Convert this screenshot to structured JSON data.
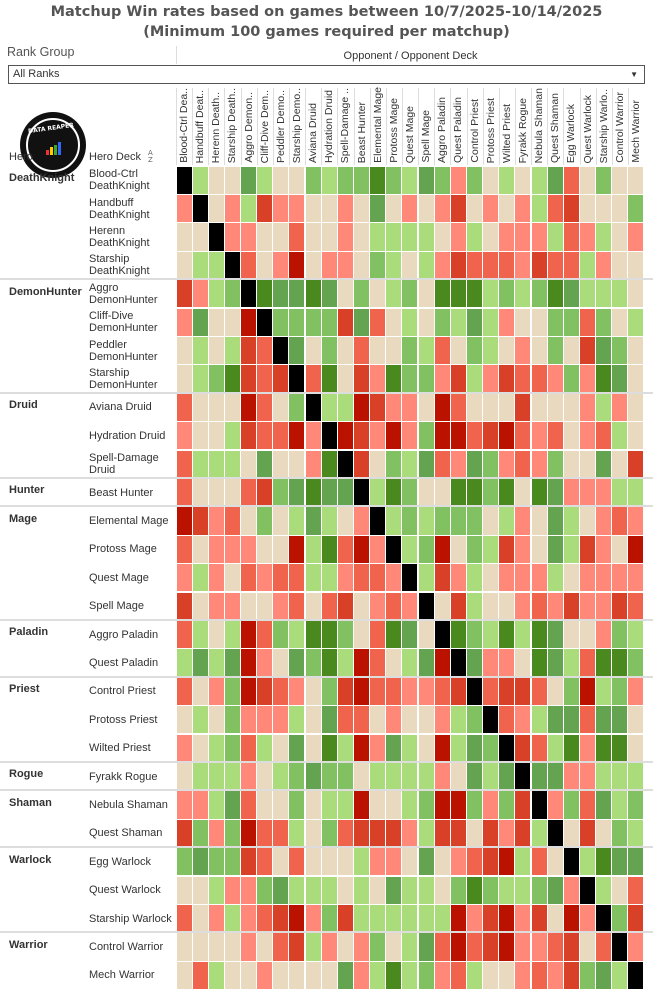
{
  "title_line1": "Matchup Win rates based on games between 10/7/2025-10/14/2025",
  "title_line2": "(Minimum 100 games required per matchup)",
  "rank_group": {
    "label": "Rank Group",
    "selected": "All Ranks"
  },
  "logo_text": "DATA REAPER REPORT",
  "header": {
    "hero": "Hero",
    "hero_deck": "Hero Deck",
    "opponent": "Opponent / Opponent Deck",
    "sort_icon": "A-Z"
  },
  "colors": {
    "X": "#000000",
    "R4": "#bb1200",
    "R3": "#d84028",
    "R2": "#f0644e",
    "R1": "#ff8878",
    "N": "#e8d9bf",
    "G1": "#aadc7c",
    "G2": "#82c162",
    "G3": "#64a450",
    "G4": "#4a891d"
  },
  "chart_data": {
    "type": "heatmap",
    "title": "Matchup Win rates based on games between 10/7/2025-10/14/2025",
    "value_scale": "categorical win-rate bins: R4 (strongly unfavored) .. N (even) .. G4 (strongly favored), X = mirror",
    "columns": [
      "Blood-Ctrl Dea..",
      "Handbuff Deat..",
      "Herenn Death..",
      "Starship Death..",
      "Aggro Demon..",
      "Cliff-Dive Dem..",
      "Peddler Demo..",
      "Starship Demo..",
      "Aviana Druid",
      "Hydration Druid",
      "Spell-Damage ..",
      "Beast Hunter",
      "Elemental Mage",
      "Protoss Mage",
      "Quest Mage",
      "Spell Mage",
      "Aggro Paladin",
      "Quest Paladin",
      "Control Priest",
      "Protoss Priest",
      "Wilted Priest",
      "Fyrakk Rogue",
      "Nebula Shaman",
      "Quest Shaman",
      "Egg Warlock",
      "Quest Warlock",
      "Starship Warlo..",
      "Control Warrior",
      "Mech Warrior"
    ],
    "groups": [
      {
        "hero": "DeathKnight",
        "rows": [
          {
            "deck": "Blood-Ctrl DeathKnight",
            "cells": "X G1 N N G3 G1 N N G2 G1 G2 G2 G4 G2 G1 G3 G2 R1 G2 N G1 N G1 G3 R2 N G2 N N"
          },
          {
            "deck": "Handbuff DeathKnight",
            "cells": "R1 X N R1 G1 R3 R1 R1 N N R1 N G3 N R1 N R1 R3 N R1 N R1 G1 R2 R3 N N N G2"
          },
          {
            "deck": "Herenn DeathKnight",
            "cells": "N N X R1 R1 N N R2 N N R1 N G1 G1 G1 G1 N R1 G1 N R1 R1 R1 G1 R2 R1 G1 N R1"
          },
          {
            "deck": "Starship DeathKnight",
            "cells": "N G1 G1 X R2 N R1 R4 N R1 R1 N G2 G1 N G1 R1 R3 R2 R2 R2 R1 R3 R2 R2 G1 R1 N N"
          }
        ]
      },
      {
        "hero": "DemonHunter",
        "rows": [
          {
            "deck": "Aggro DemonHunter",
            "cells": "R3 R1 G1 G2 X G4 G3 G3 G4 G3 N G2 N G1 G2 N G4 G4 G4 G1 G2 G1 G2 G4 G3 G1 G1 G1 N"
          },
          {
            "deck": "Cliff-Dive DemonHunter",
            "cells": "R1 G3 N N R4 X G2 G2 G2 G2 R3 G3 R2 N G1 N G2 G1 G3 G1 R1 N N G2 G2 R2 G2 N G1"
          },
          {
            "deck": "Peddler DemonHunter",
            "cells": "N G1 N G1 R3 R2 X G3 N G2 N R2 N N G2 G1 R2 N G2 G1 N R1 N G2 N R3 G3 G2 N"
          },
          {
            "deck": "Starship DemonHunter",
            "cells": "N G1 G2 G4 R3 R2 R3 X R2 G4 N R3 R1 G4 G2 G2 R1 R3 G1 R1 R3 R2 R2 R1 G2 R1 G4 G3 N"
          }
        ]
      },
      {
        "hero": "Druid",
        "rows": [
          {
            "deck": "Aviana Druid",
            "cells": "R2 N N N R4 R2 N G2 X G1 G1 R4 R3 R1 R1 N R4 R2 N N N R3 N N N R1 G1 R1 N"
          },
          {
            "deck": "Hydration Druid",
            "cells": "R1 N N G1 R3 R2 R2 R4 R1 X R4 R3 R1 R4 R1 G2 R4 R4 R2 R3 R4 R2 R1 R2 N R1 R2 G1 N"
          },
          {
            "deck": "Spell-Damage Druid",
            "cells": "R2 G1 G1 G1 N G3 N N R1 G4 X R3 N G2 G1 G3 R2 R1 G3 G2 R1 R2 R1 G2 N N G3 N R3"
          }
        ]
      },
      {
        "hero": "Hunter",
        "rows": [
          {
            "deck": "Beast Hunter",
            "cells": "R2 N N N R2 R3 G2 G3 G4 G3 G3 X G1 G4 G2 N N G4 G4 G2 G4 N G4 G3 R1 R1 R1 G1 G1"
          }
        ]
      },
      {
        "hero": "Mage",
        "rows": [
          {
            "deck": "Elemental Mage",
            "cells": "R4 R3 R1 R2 N G2 N G1 G3 G1 N R1 X G1 G2 G1 G2 G2 G2 N G1 R1 N G3 G1 N R1 R2 R1"
          },
          {
            "deck": "Protoss Mage",
            "cells": "R2 N R1 R1 R1 N N R4 G1 G4 R2 R4 R1 X G1 G2 R4 N G2 G1 R3 R1 N G3 G1 R3 R1 N R4"
          },
          {
            "deck": "Quest Mage",
            "cells": "R1 G1 R1 N R2 R1 R2 R2 G1 G1 R1 R2 R2 R1 X G1 R3 R1 G1 N R1 R1 R1 G1 N R1 R1 R1 R1"
          },
          {
            "deck": "Spell Mage",
            "cells": "R3 N R1 R1 N N R1 R2 N R2 R3 N R1 R2 R1 X N R3 G1 N N R1 R2 R1 R3 R1 R1 R3 R2"
          }
        ]
      },
      {
        "hero": "Paladin",
        "rows": [
          {
            "deck": "Aggro Paladin",
            "cells": "R2 G1 N G1 R4 R2 G2 G1 G4 G4 G2 N R2 G4 G3 N X G4 G2 G1 G4 G1 G4 G3 N N R1 G2 G1"
          },
          {
            "deck": "Quest Paladin",
            "cells": "G1 G3 G1 G3 R4 R1 N G3 G2 G4 G1 R4 R2 N G1 G3 R4 X G3 R1 R1 N G4 G3 G1 R2 G4 G4 G2"
          }
        ]
      },
      {
        "hero": "Priest",
        "rows": [
          {
            "deck": "Control Priest",
            "cells": "R2 N R1 G2 R4 R3 R2 R1 N G2 R3 R4 R2 R2 R1 R1 R2 R3 X R2 R3 R3 R2 N G2 R4 G1 G2 R1"
          },
          {
            "deck": "Protoss Priest",
            "cells": "N G1 N G2 R1 R1 R1 G1 N G3 R2 R2 N R1 N N R1 G1 G2 X R2 R1 G1 G3 G3 R2 G3 G3 N"
          },
          {
            "deck": "Wilted Priest",
            "cells": "R1 N G1 G2 R2 G1 N G3 N G4 G1 R4 R1 G3 G1 N R4 G1 G3 G2 X R3 R2 G1 G4 R1 G4 G4 N"
          }
        ]
      },
      {
        "hero": "Rogue",
        "rows": [
          {
            "deck": "Fyrakk Rogue",
            "cells": "N G1 G1 G1 R1 N G1 G2 G3 G2 G2 N G1 G1 G1 G1 R1 N G3 G1 G3 X G3 G3 R1 R1 G1 G1 G1"
          }
        ]
      },
      {
        "hero": "Shaman",
        "rows": [
          {
            "deck": "Nebula Shaman",
            "cells": "R1 R1 G1 G3 R2 N N G2 N G1 G1 R4 N N G1 G2 R4 R4 G2 R1 G2 R3 X R1 G2 R2 G3 G1 G2"
          },
          {
            "deck": "Quest Shaman",
            "cells": "R3 G2 R1 G2 R4 R2 R2 G1 N G2 R2 R3 R3 R3 R1 G1 R3 R3 N R3 R1 R3 G1 X N R3 N G2 G1"
          }
        ]
      },
      {
        "hero": "Warlock",
        "rows": [
          {
            "deck": "Egg Warlock",
            "cells": "G2 G3 G2 G2 R3 R2 N R2 N N N G1 R1 R1 N G3 N R1 R2 R3 R4 G1 R2 N X G1 G4 G3 G3"
          },
          {
            "deck": "Quest Warlock",
            "cells": "N N G1 R1 R1 G2 G3 G1 G1 G1 N G1 N G3 G1 G1 N G2 G4 G2 G1 G1 G2 G3 R1 X G1 N R2"
          },
          {
            "deck": "Starship Warlock",
            "cells": "R2 N R1 G1 R1 R2 R3 R4 R1 G2 R3 G1 G1 G1 G1 G1 G1 R4 R1 R3 R4 R1 R3 N R4 R1 X G2 R3"
          }
        ]
      },
      {
        "hero": "Warrior",
        "rows": [
          {
            "deck": "Control Warrior",
            "cells": "N N N N R1 N R2 R3 G1 R1 N R1 G2 N G1 G3 R2 R4 R2 R3 R4 R1 R1 R2 R3 N R2 X R1"
          },
          {
            "deck": "Mech Warrior",
            "cells": "N R2 G1 N N R1 N N N N G3 R1 G1 G4 G1 G2 R1 R2 G1 N N R1 R2 R1 R3 G2 G3 G1 X"
          }
        ]
      }
    ]
  }
}
